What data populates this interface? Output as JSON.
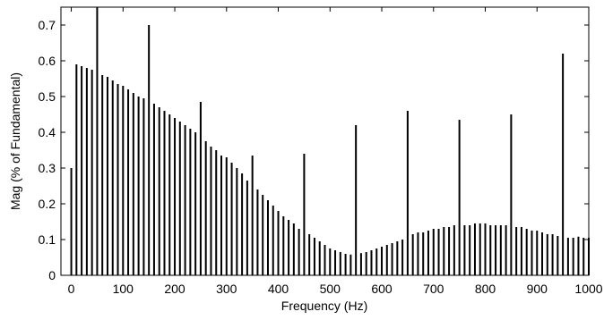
{
  "chart_data": {
    "type": "bar",
    "title": "",
    "xlabel": "Frequency (Hz)",
    "ylabel": "Mag (% of Fundamental)",
    "xlim": [
      -20,
      1000
    ],
    "ylim": [
      0,
      0.75
    ],
    "xticks": [
      0,
      100,
      200,
      300,
      400,
      500,
      600,
      700,
      800,
      900,
      1000
    ],
    "xtick_labels": [
      "0",
      "100",
      "200",
      "300",
      "400",
      "500",
      "600",
      "700",
      "800",
      "900",
      "1000"
    ],
    "yticks": [
      0,
      0.1,
      0.2,
      0.3,
      0.4,
      0.5,
      0.6,
      0.7
    ],
    "ytick_labels": [
      "0",
      "0.1",
      "0.2",
      "0.3",
      "0.4",
      "0.5",
      "0.6",
      "0.7"
    ],
    "grid": false,
    "legend": "none",
    "bar_color": "#000000",
    "x": [
      0,
      10,
      20,
      30,
      40,
      50,
      60,
      70,
      80,
      90,
      100,
      110,
      120,
      130,
      140,
      150,
      160,
      170,
      180,
      190,
      200,
      210,
      220,
      230,
      240,
      250,
      260,
      270,
      280,
      290,
      300,
      310,
      320,
      330,
      340,
      350,
      360,
      370,
      380,
      390,
      400,
      410,
      420,
      430,
      440,
      450,
      460,
      470,
      480,
      490,
      500,
      510,
      520,
      530,
      540,
      550,
      560,
      570,
      580,
      590,
      600,
      610,
      620,
      630,
      640,
      650,
      660,
      670,
      680,
      690,
      700,
      710,
      720,
      730,
      740,
      750,
      760,
      770,
      780,
      790,
      800,
      810,
      820,
      830,
      840,
      850,
      860,
      870,
      880,
      890,
      900,
      910,
      920,
      930,
      940,
      950,
      960,
      970,
      980,
      990,
      1000
    ],
    "values": [
      0.3,
      0.59,
      0.585,
      0.58,
      0.575,
      0.78,
      0.56,
      0.555,
      0.545,
      0.535,
      0.53,
      0.52,
      0.51,
      0.5,
      0.495,
      0.7,
      0.48,
      0.47,
      0.46,
      0.45,
      0.44,
      0.43,
      0.42,
      0.41,
      0.4,
      0.485,
      0.375,
      0.36,
      0.35,
      0.335,
      0.33,
      0.315,
      0.3,
      0.285,
      0.265,
      0.335,
      0.24,
      0.225,
      0.21,
      0.195,
      0.18,
      0.165,
      0.155,
      0.145,
      0.13,
      0.34,
      0.115,
      0.105,
      0.095,
      0.085,
      0.075,
      0.07,
      0.065,
      0.06,
      0.058,
      0.42,
      0.062,
      0.065,
      0.07,
      0.075,
      0.08,
      0.085,
      0.09,
      0.095,
      0.1,
      0.46,
      0.115,
      0.12,
      0.12,
      0.125,
      0.13,
      0.13,
      0.135,
      0.135,
      0.14,
      0.435,
      0.14,
      0.14,
      0.145,
      0.145,
      0.145,
      0.14,
      0.14,
      0.14,
      0.14,
      0.45,
      0.135,
      0.135,
      0.13,
      0.125,
      0.125,
      0.12,
      0.115,
      0.115,
      0.11,
      0.62,
      0.105,
      0.105,
      0.108,
      0.105,
      0.105
    ]
  }
}
